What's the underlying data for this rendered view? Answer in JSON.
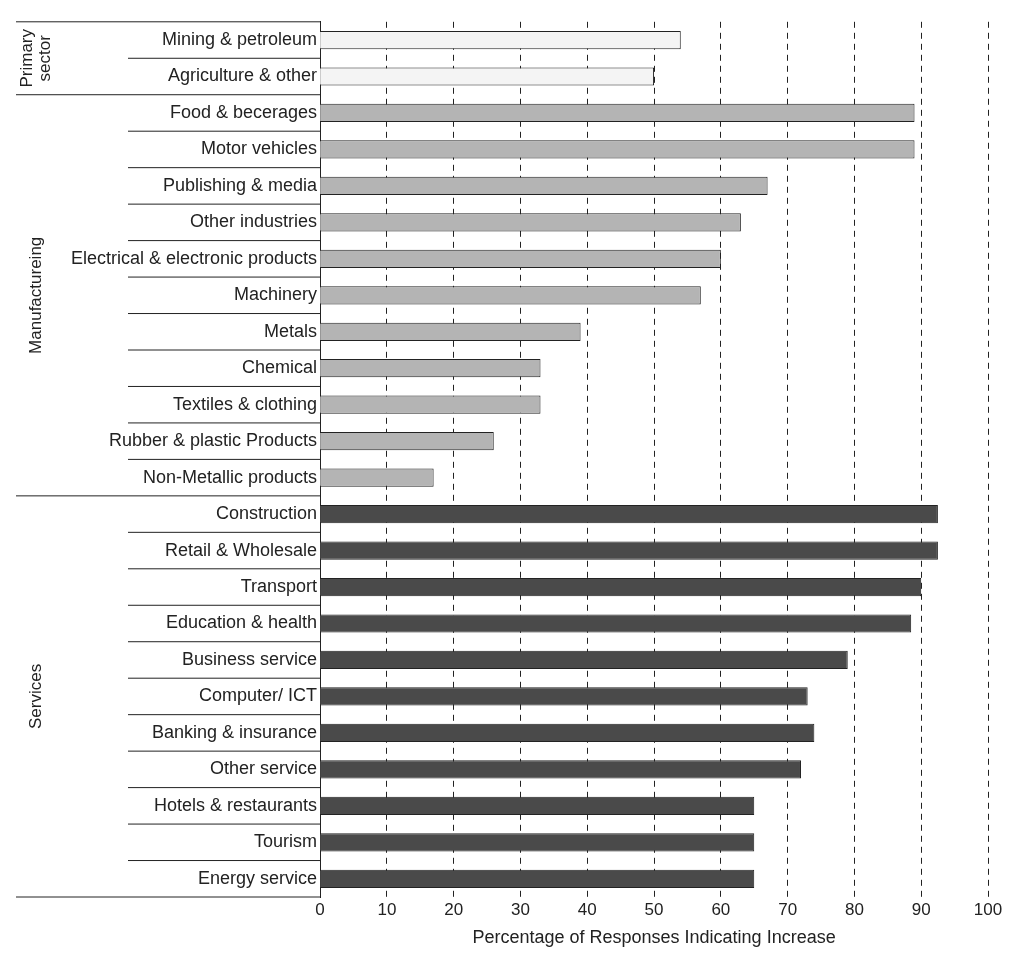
{
  "chart_data": {
    "type": "bar",
    "orientation": "horizontal",
    "xlabel": "Percentage of Responses Indicating Increase",
    "categories": [
      "Mining & petroleum",
      "Agriculture & other",
      "Food & becerages",
      "Motor vehicles",
      "Publishing & media",
      "Other industries",
      "Electrical & electronic products",
      "Machinery",
      "Metals",
      "Chemical",
      "Textiles & clothing",
      "Rubber & plastic Products",
      "Non-Metallic products",
      "Construction",
      "Retail & Wholesale",
      "Transport",
      "Education & health",
      "Business service",
      "Computer/ ICT",
      "Banking & insurance",
      "Other service",
      "Hotels & restaurants",
      "Tourism",
      "Energy service"
    ],
    "values": [
      54,
      50,
      89,
      89,
      67,
      63,
      60,
      57,
      39,
      33,
      33,
      26,
      17,
      92.5,
      92.5,
      90,
      88.5,
      79,
      73,
      74,
      72,
      65,
      65,
      65
    ],
    "colors": [
      "#f4f4f4",
      "#f4f4f4",
      "#b4b4b4",
      "#b4b4b4",
      "#b4b4b4",
      "#b4b4b4",
      "#b4b4b4",
      "#b4b4b4",
      "#b4b4b4",
      "#b4b4b4",
      "#b4b4b4",
      "#b4b4b4",
      "#b4b4b4",
      "#4a4a4a",
      "#4a4a4a",
      "#4a4a4a",
      "#4a4a4a",
      "#4a4a4a",
      "#4a4a4a",
      "#4a4a4a",
      "#4a4a4a",
      "#4a4a4a",
      "#4a4a4a",
      "#4a4a4a"
    ],
    "xlim": [
      0,
      100
    ],
    "xticks": [
      0,
      10,
      20,
      30,
      40,
      50,
      60,
      70,
      80,
      90,
      100
    ],
    "grid": "x",
    "legend": false,
    "annotations": [
      "Primary sector",
      "Manufactureing",
      "Services"
    ]
  }
}
